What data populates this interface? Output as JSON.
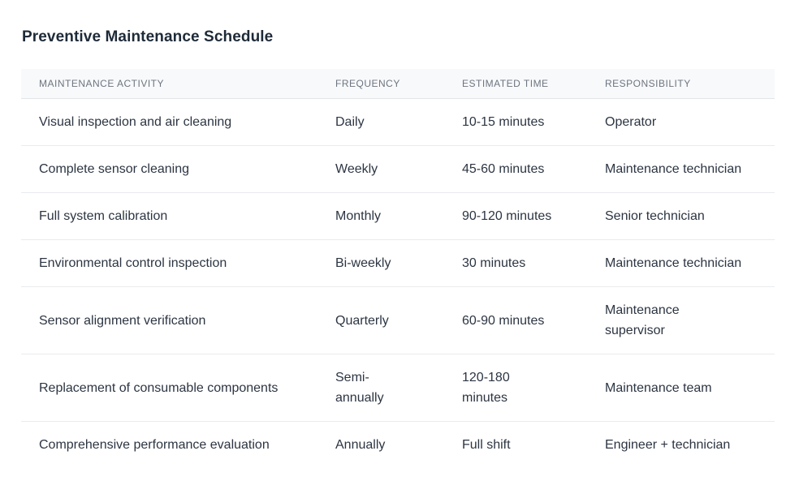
{
  "page_title": "Preventive Maintenance Schedule",
  "colors": {
    "page_background": "#ffffff",
    "title_text": "#1e2a38",
    "body_text": "#2c3542",
    "header_background": "#f8f9fb",
    "header_text": "#6d757f",
    "row_divider": "#e9ebee"
  },
  "table": {
    "columns": [
      "MAINTENANCE ACTIVITY",
      "FREQUENCY",
      "ESTIMATED TIME",
      "RESPONSIBILITY"
    ],
    "rows": [
      {
        "activity": "Visual inspection and air cleaning",
        "frequency": "Daily",
        "estimated_time": "10-15 minutes",
        "responsibility": "Operator"
      },
      {
        "activity": "Complete sensor cleaning",
        "frequency": "Weekly",
        "estimated_time": "45-60 minutes",
        "responsibility": "Maintenance technician"
      },
      {
        "activity": "Full system calibration",
        "frequency": "Monthly",
        "estimated_time": "90-120 minutes",
        "responsibility": "Senior technician"
      },
      {
        "activity": "Environmental control inspection",
        "frequency": "Bi-weekly",
        "estimated_time": "30 minutes",
        "responsibility": "Maintenance technician"
      },
      {
        "activity": "Sensor alignment verification",
        "frequency": "Quarterly",
        "estimated_time": "60-90 minutes",
        "responsibility": "Maintenance supervisor"
      },
      {
        "activity": "Replacement of consumable components",
        "frequency": "Semi-annually",
        "estimated_time": "120-180 minutes",
        "responsibility": "Maintenance team"
      },
      {
        "activity": "Comprehensive performance evaluation",
        "frequency": "Annually",
        "estimated_time": "Full shift",
        "responsibility": "Engineer + technician"
      }
    ]
  }
}
